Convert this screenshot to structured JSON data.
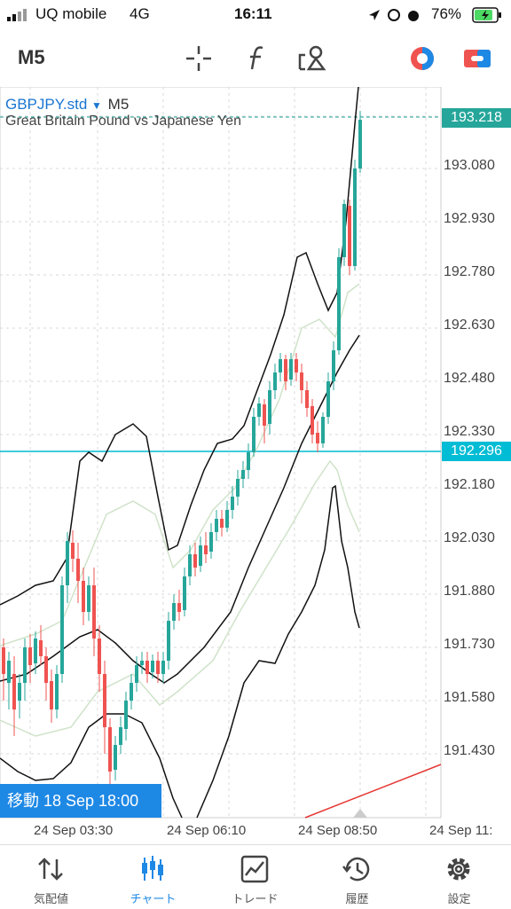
{
  "status": {
    "carrier": "UQ mobile",
    "network": "4G",
    "time": "16:11",
    "battery": "76%"
  },
  "toolbar": {
    "timeframe": "M5",
    "icons": [
      "crosshair-icon",
      "function-icon",
      "objects-icon",
      "color-scheme-icon",
      "trade-icon"
    ]
  },
  "chart": {
    "symbol": "GBPJPY.std",
    "timeframe": "M5",
    "description": "Great Britain Pound vs Japanese Yen",
    "price_labels": [
      "193.080",
      "192.930",
      "192.780",
      "192.630",
      "192.480",
      "192.330",
      "192.180",
      "192.030",
      "191.880",
      "191.730",
      "191.580",
      "191.430"
    ],
    "time_labels": [
      "24 Sep 03:30",
      "24 Sep 06:10",
      "24 Sep 08:50",
      "24 Sep 11:"
    ],
    "bid_price": "193.218",
    "line_price": "192.296",
    "move_label": "移動 18 Sep 18:00",
    "colors": {
      "bull": "#26a69a",
      "bear": "#ef5350",
      "bid": "#26a69a",
      "line": "#00bcd4",
      "accent": "#1e88e5"
    }
  },
  "tabs": [
    {
      "label": "気配値",
      "icon": "quotes-icon"
    },
    {
      "label": "チャート",
      "icon": "chart-icon"
    },
    {
      "label": "トレード",
      "icon": "trade-chart-icon"
    },
    {
      "label": "履歴",
      "icon": "history-icon"
    },
    {
      "label": "設定",
      "icon": "settings-icon"
    }
  ]
}
